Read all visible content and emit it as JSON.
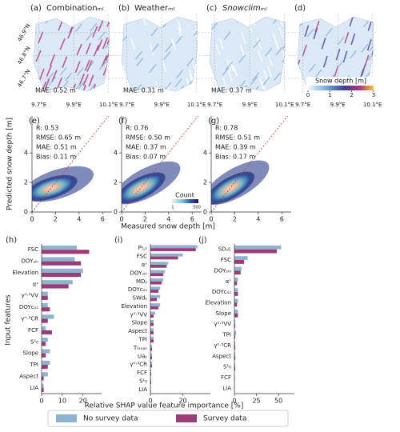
{
  "figure": {
    "scatter_xlabel": "Measured snow depth [m]",
    "scatter_ylabel": "Predicted snow depth [m]",
    "bar_xlabel": "Relative SHAP value feature importance [%]",
    "bar_ylabel": "Input features"
  },
  "chart_data": [
    {
      "type": "map",
      "label": "(a)",
      "title": "Combinationₘₗ",
      "annotation": "MAE: 0.52 m",
      "xlim": [
        9.66,
        10.12
      ],
      "ylim": [
        46.63,
        46.98
      ],
      "xticks": [
        {
          "value": 9.7,
          "label": "9.7°E"
        },
        {
          "value": 9.9,
          "label": "9.9°E"
        },
        {
          "value": 10.1,
          "label": "10.1°E"
        }
      ],
      "yticks": [
        {
          "value": 46.9,
          "label": "46.9°N"
        },
        {
          "value": 46.8,
          "label": "46.8°N"
        },
        {
          "value": 46.7,
          "label": "46.7°N"
        }
      ]
    },
    {
      "type": "map",
      "label": "(b)",
      "title": "Weatherₘₗ",
      "annotation": "MAE: 0.31 m",
      "xlim": [
        9.66,
        10.12
      ],
      "xticks": [
        {
          "value": 9.7,
          "label": "9.7°E"
        },
        {
          "value": 9.9,
          "label": "9.9°E"
        },
        {
          "value": 10.1,
          "label": "10.1°E"
        }
      ]
    },
    {
      "type": "map",
      "label": "(c)",
      "title": "Snowclimₘₗ",
      "annotation": "MAE: 0.37 m",
      "xlim": [
        9.66,
        10.12
      ],
      "xticks": [
        {
          "value": 9.7,
          "label": "9.7°E"
        },
        {
          "value": 9.9,
          "label": "9.9°E"
        },
        {
          "value": 10.1,
          "label": "10.1°E"
        }
      ]
    },
    {
      "type": "map",
      "label": "(d)",
      "xlim": [
        9.66,
        10.12
      ],
      "xticks": [
        {
          "value": 9.7,
          "label": "9.7°E"
        },
        {
          "value": 9.9,
          "label": "9.9°E"
        },
        {
          "value": 10.1,
          "label": "10.1°E"
        }
      ],
      "colorbar": {
        "label": "Snow depth [m]",
        "lim": [
          0,
          3
        ],
        "ticks": [
          0,
          1,
          2,
          3
        ]
      }
    },
    {
      "type": "density",
      "label": "(e)",
      "annotations": [
        "R: 0.53",
        "RMSE: 0.65 m",
        "MAE: 0.51 m",
        "Bias: 0.11 m"
      ],
      "xlim": [
        0,
        6.8
      ],
      "ylim": [
        0,
        6.5
      ],
      "xticks": [
        0,
        2,
        4,
        6
      ],
      "yticks": [
        0,
        2,
        4
      ]
    },
    {
      "type": "density",
      "label": "(f)",
      "annotations": [
        "R: 0.76",
        "RMSE: 0.50 m",
        "MAE: 0.37 m",
        "Bias: 0.07 m"
      ],
      "xlim": [
        0,
        6.8
      ],
      "ylim": [
        0,
        6.5
      ],
      "xticks": [
        0,
        2,
        4,
        6
      ],
      "yticks": [
        0,
        2,
        4
      ],
      "colorbar": {
        "label": "Count",
        "ticks": [
          "1",
          "500"
        ]
      }
    },
    {
      "type": "density",
      "label": "(g)",
      "annotations": [
        "R: 0.78",
        "RMSE: 0.51 m",
        "MAE: 0.39 m",
        "Bias: 0.17 m"
      ],
      "xlim": [
        0,
        6.8
      ],
      "ylim": [
        0,
        6.5
      ],
      "xticks": [
        0,
        2,
        4,
        6
      ],
      "yticks": [
        0,
        2,
        4
      ]
    },
    {
      "type": "bar",
      "label": "(h)",
      "xlim": [
        0,
        29
      ],
      "xticks": [
        0,
        10,
        20
      ],
      "categories": [
        "FSC",
        "DOYₛᵢₙ",
        "Elevation",
        "αˢ",
        "γ⁰·⁵VV",
        "DOYcₒₛ",
        "γ⁰·⁵CR",
        "FCF",
        "S¹₀",
        "Slope",
        "TPI",
        "Aspect",
        "LIA"
      ],
      "series": [
        {
          "name": "No survey data",
          "color": "#8fb3cf",
          "values": [
            17,
            16,
            20,
            15,
            3,
            3,
            6,
            2,
            3,
            4,
            4,
            3,
            1
          ]
        },
        {
          "name": "Survey data",
          "color": "#9b3b78",
          "values": [
            23,
            19,
            19,
            13,
            3,
            4,
            3,
            5,
            2,
            2,
            3,
            1,
            1
          ]
        }
      ]
    },
    {
      "type": "bar",
      "label": "(i)",
      "xlim": [
        0,
        37
      ],
      "xticks": [
        0,
        20
      ],
      "categories": [
        "P₅,ₜ",
        "FSC",
        "αˢ",
        "DOYₛᵢₙ",
        "MDᵧ",
        "DOYcₒₛ",
        "SWdᵧ",
        "Elevation",
        "γ⁰·⁵VV",
        "Slope",
        "Aspect",
        "TPI",
        "Tₘₑₐₙ",
        "Uaᵧ",
        "γ⁰·⁵CR",
        "FCF",
        "S¹₀",
        "LIA"
      ],
      "series": [
        {
          "name": "No survey data",
          "color": "#8fb3cf",
          "values": [
            29,
            20,
            11,
            9,
            8,
            6,
            6,
            6,
            3,
            2,
            2,
            2,
            1,
            1,
            1,
            0.5,
            0.5,
            0.3
          ]
        },
        {
          "name": "Survey data",
          "color": "#9b3b78",
          "values": [
            28,
            17,
            10,
            8,
            7,
            5,
            4,
            5,
            2,
            2,
            2,
            2,
            1,
            1,
            1,
            0.5,
            0.5,
            0.3
          ]
        }
      ]
    },
    {
      "type": "bar",
      "label": "(j)",
      "xlim": [
        0,
        68
      ],
      "xticks": [
        0,
        25,
        50
      ],
      "categories": [
        "SDₛc",
        "FSC",
        "DOYₛᵢₙ",
        "αˢ",
        "DOYcₒₛ",
        "Elevation",
        "Slope",
        "γ⁰·⁵VV",
        "TPI",
        "γ⁰·⁵CR",
        "Aspect",
        "S¹₀",
        "FCF",
        "LIA"
      ],
      "series": [
        {
          "name": "No survey data",
          "color": "#8fb3cf",
          "values": [
            53,
            15,
            8,
            4,
            4,
            4,
            4,
            1,
            2,
            1,
            1,
            1,
            0.5,
            0.5
          ]
        },
        {
          "name": "Survey data",
          "color": "#9b3b78",
          "values": [
            48,
            11,
            7,
            3,
            4,
            3,
            4,
            1,
            1,
            1,
            1,
            1,
            0.5,
            0.3
          ]
        }
      ]
    }
  ]
}
